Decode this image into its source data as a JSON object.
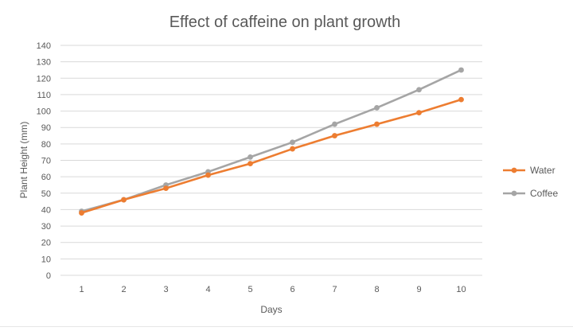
{
  "chart_data": {
    "type": "line",
    "title": "Effect of caffeine on plant growth",
    "xlabel": "Days",
    "ylabel": "Plant Height (mm)",
    "categories": [
      "1",
      "2",
      "3",
      "4",
      "5",
      "6",
      "7",
      "8",
      "9",
      "10"
    ],
    "ylim": [
      0,
      140
    ],
    "yticks": [
      "0",
      "10",
      "20",
      "30",
      "40",
      "50",
      "60",
      "70",
      "80",
      "90",
      "100",
      "110",
      "120",
      "130",
      "140"
    ],
    "grid": true,
    "legend_position": "right",
    "series": [
      {
        "name": "Water",
        "color": "#ED7D31",
        "values": [
          38,
          46,
          53,
          61,
          68,
          77,
          85,
          92,
          99,
          107
        ]
      },
      {
        "name": "Coffee",
        "color": "#A5A5A5",
        "values": [
          39,
          46,
          55,
          63,
          72,
          81,
          92,
          102,
          113,
          125
        ]
      }
    ]
  }
}
